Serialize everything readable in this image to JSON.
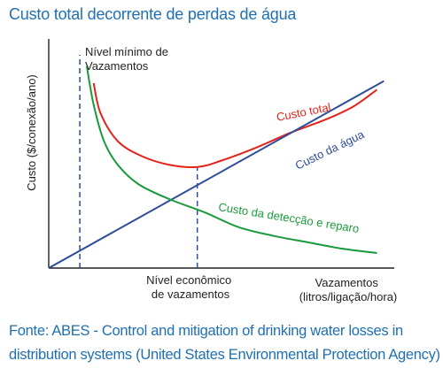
{
  "chart_data": {
    "type": "line",
    "title": "Custo total decorrente de perdas de água",
    "ylabel": "Custo ($/conexão/ano)",
    "xlabel": [
      "Vazamentos",
      "(litros/ligação/hora)"
    ],
    "grid": false,
    "axes_ticks": "none",
    "series": [
      {
        "name": "Custo total",
        "color": "#e2231a",
        "points": [
          [
            0.13,
            0.86
          ],
          [
            0.15,
            0.72
          ],
          [
            0.2,
            0.59
          ],
          [
            0.27,
            0.52
          ],
          [
            0.35,
            0.48
          ],
          [
            0.43,
            0.47
          ],
          [
            0.5,
            0.5
          ],
          [
            0.6,
            0.56
          ],
          [
            0.7,
            0.63
          ],
          [
            0.8,
            0.69
          ],
          [
            0.88,
            0.75
          ],
          [
            0.95,
            0.83
          ]
        ]
      },
      {
        "name": "Custo da água",
        "color": "#2e4d9a",
        "points": [
          [
            0.0,
            0.0
          ],
          [
            0.97,
            0.87
          ]
        ]
      },
      {
        "name": "Custo da detecção e reparo",
        "color": "#1a9a3c",
        "points": [
          [
            0.11,
            0.94
          ],
          [
            0.13,
            0.76
          ],
          [
            0.16,
            0.59
          ],
          [
            0.2,
            0.48
          ],
          [
            0.26,
            0.39
          ],
          [
            0.35,
            0.32
          ],
          [
            0.45,
            0.26
          ],
          [
            0.55,
            0.19
          ],
          [
            0.65,
            0.15
          ],
          [
            0.75,
            0.12
          ],
          [
            0.85,
            0.09
          ],
          [
            0.95,
            0.07
          ]
        ]
      }
    ],
    "reference_lines": [
      {
        "label": [
          "Nível mínimo de",
          "Vazamentos"
        ],
        "x": 0.09,
        "style": "dashed",
        "color": "#2e4d9a"
      },
      {
        "label": [
          "Nível econômico",
          "de vazamentos"
        ],
        "x": 0.43,
        "style": "dashed",
        "color": "#2e4d9a",
        "y_to": 0.47
      }
    ],
    "source": [
      "Fonte: ABES - Control and mitigation of drinking water losses in",
      "distribution systems (United States Environmental Protection Agency)"
    ]
  }
}
